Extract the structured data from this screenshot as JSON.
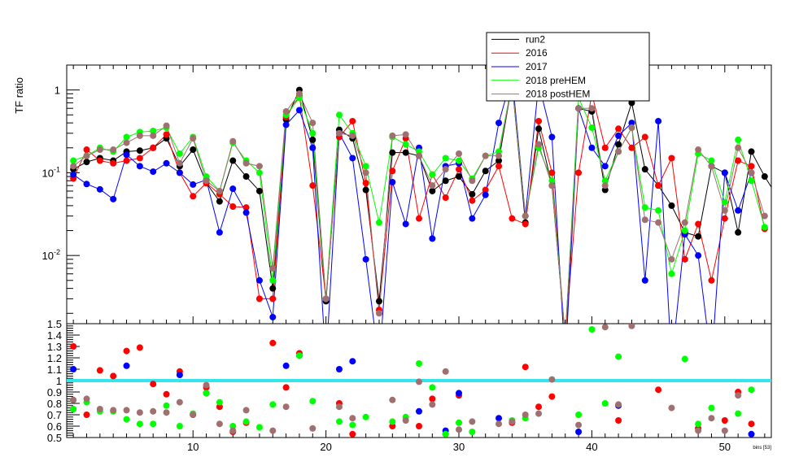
{
  "chart_data": [
    {
      "type": "line",
      "ylabel": "TF ratio",
      "yscale": "log",
      "ylim": [
        0.0015,
        2
      ],
      "xlim": [
        0.5,
        53.5
      ],
      "yticks": [
        {
          "value": 0.01,
          "base": "10",
          "exp": "-2"
        },
        {
          "value": 0.1,
          "base": "10",
          "exp": "-1"
        },
        {
          "value": 1,
          "base": "1",
          "exp": ""
        }
      ],
      "legend": {
        "position": "top-right"
      },
      "series": [
        {
          "name": "run2",
          "color": "#000000",
          "values": [
            0.11,
            0.135,
            0.15,
            0.14,
            0.18,
            0.185,
            0.2,
            0.26,
            0.12,
            0.19,
            0.075,
            0.045,
            0.14,
            0.09,
            0.06,
            0.004,
            0.44,
            1.0,
            0.25,
            0.0028,
            0.33,
            0.26,
            0.062,
            0.0028,
            0.175,
            0.175,
            0.16,
            0.06,
            0.08,
            0.09,
            0.055,
            0.105,
            0.14,
            1.2,
            0.025,
            0.34,
            0.07,
            0.001,
            0.6,
            0.55,
            0.062,
            0.22,
            0.7,
            0.11,
            0.07,
            0.04,
            0.019,
            0.017,
            0.12,
            0.1,
            0.019,
            0.18,
            0.09,
            0.05
          ]
        },
        {
          "name": "2016",
          "color": "#ff0000",
          "values": [
            0.085,
            0.19,
            0.14,
            0.13,
            0.14,
            0.15,
            0.2,
            0.29,
            0.1,
            0.052,
            0.075,
            0.055,
            0.039,
            0.038,
            0.003,
            0.003,
            0.47,
            0.85,
            0.07,
            0.003,
            0.27,
            0.42,
            0.075,
            0.0022,
            0.105,
            0.26,
            0.028,
            0.095,
            0.05,
            0.11,
            0.046,
            0.062,
            0.12,
            0.028,
            0.024,
            0.42,
            0.1,
            0.001,
            0.1,
            0.9,
            0.2,
            0.34,
            0.2,
            0.27,
            0.07,
            0.15,
            0.009,
            0.024,
            0.005,
            0.028,
            0.14,
            0.12,
            0.021
          ]
        },
        {
          "name": "2017",
          "color": "#0000ff",
          "values": [
            0.095,
            0.073,
            0.063,
            0.048,
            0.165,
            0.12,
            0.103,
            0.13,
            0.1,
            0.072,
            0.082,
            0.019,
            0.064,
            0.033,
            0.005,
            0.0018,
            0.38,
            0.57,
            0.2,
            0.0005,
            0.3,
            0.15,
            0.009,
            0.0005,
            0.077,
            0.024,
            0.2,
            0.016,
            0.12,
            0.13,
            0.028,
            0.054,
            0.4,
            1.5,
            0.03,
            1.2,
            0.27,
            0.0005,
            0.6,
            0.2,
            0.12,
            0.28,
            0.4,
            0.005,
            0.42,
            0.0005,
            0.018,
            0.01,
            0.0005,
            0.1,
            0.035,
            0.1
          ]
        },
        {
          "name": "2018 preHEM",
          "color": "#00ff00",
          "values": [
            0.14,
            0.16,
            0.2,
            0.18,
            0.27,
            0.31,
            0.32,
            0.35,
            0.17,
            0.27,
            0.09,
            0.06,
            0.23,
            0.14,
            0.1,
            0.005,
            0.5,
            0.8,
            0.3,
            0.003,
            0.5,
            0.3,
            0.12,
            0.025,
            0.27,
            0.22,
            0.18,
            0.095,
            0.15,
            0.14,
            0.085,
            0.16,
            0.18,
            1.2,
            0.03,
            0.2,
            0.08,
            0.001,
            0.8,
            0.35,
            0.08,
            0.18,
            0.35,
            0.038,
            0.035,
            0.006,
            0.02,
            0.17,
            0.14,
            0.044,
            0.25,
            0.08,
            0.022
          ]
        },
        {
          "name": "2018 postHEM",
          "color": "#a07070",
          "values": [
            0.12,
            0.16,
            0.19,
            0.19,
            0.23,
            0.28,
            0.28,
            0.37,
            0.13,
            0.26,
            0.08,
            0.06,
            0.24,
            0.13,
            0.12,
            0.007,
            0.55,
            0.9,
            0.4,
            0.003,
            0.3,
            0.28,
            0.1,
            0.002,
            0.28,
            0.29,
            0.16,
            0.07,
            0.11,
            0.17,
            0.08,
            0.16,
            0.16,
            1.2,
            0.03,
            0.22,
            0.07,
            0.001,
            0.6,
            0.6,
            0.07,
            0.18,
            0.35,
            0.027,
            0.025,
            0.009,
            0.025,
            0.19,
            0.12,
            0.035,
            0.2,
            0.1,
            0.03
          ]
        }
      ]
    },
    {
      "type": "scatter",
      "xlabel": "bins [53]",
      "ylim": [
        0.5,
        1.5
      ],
      "xlim": [
        0.5,
        53.5
      ],
      "yticks": [
        "0.5",
        "0.6",
        "0.7",
        "0.8",
        "0.9",
        "1",
        "1.1",
        "1.2",
        "1.3",
        "1.4",
        "1.5"
      ],
      "xticks": [
        "10",
        "20",
        "30",
        "40",
        "50"
      ],
      "reference_line": {
        "value": 1.0,
        "color": "#33e6ee"
      },
      "series": [
        {
          "name": "2016",
          "color": "#ff0000",
          "values": [
            1.3,
            0.7,
            1.09,
            1.04,
            1.26,
            1.29,
            0.97,
            0.88,
            1.08,
            0.7,
            0.94,
            0.77,
            0.55,
            0.63,
            0.5,
            1.33,
            0.94,
            1.24,
            0.5,
            0.5,
            0.8,
            0.53,
            0.5,
            0.5,
            0.6,
            0.5,
            0.6,
            0.84,
            0.53,
            0.87,
            0.5,
            0.5,
            0.5,
            0.63,
            1.12,
            0.77,
            0.86,
            0.5,
            0.5,
            0.5,
            0.5,
            0.65,
            0.5,
            0.5,
            0.92,
            0.5,
            0.5,
            0.58,
            0.5,
            0.65,
            0.9,
            0.62
          ]
        },
        {
          "name": "2017",
          "color": "#0000ff",
          "values": [
            1.1,
            0.5,
            0.5,
            0.5,
            1.13,
            0.5,
            0.5,
            0.5,
            1.05,
            0.5,
            0.89,
            0.5,
            0.5,
            0.5,
            0.5,
            0.5,
            1.13,
            1.22,
            0.5,
            0.5,
            1.1,
            1.17,
            0.5,
            0.5,
            0.5,
            0.5,
            0.73,
            0.5,
            0.56,
            0.89,
            0.5,
            0.5,
            0.67,
            0.5,
            0.5,
            0.5,
            0.5,
            0.5,
            0.55,
            0.5,
            0.5,
            0.78,
            0.5,
            0.5,
            0.5,
            0.5,
            0.5,
            0.5,
            0.5,
            0.5,
            0.5,
            0.53
          ]
        },
        {
          "name": "2018 preHEM",
          "color": "#00ff00",
          "values": [
            0.75,
            0.81,
            0.73,
            0.73,
            0.66,
            0.62,
            0.62,
            0.78,
            0.6,
            0.71,
            0.89,
            0.81,
            0.6,
            0.64,
            0.59,
            0.79,
            0.5,
            1.22,
            0.82,
            0.5,
            0.64,
            0.61,
            0.68,
            0.5,
            0.64,
            0.68,
            1.15,
            0.94,
            0.53,
            0.63,
            0.55,
            0.5,
            0.5,
            0.65,
            0.67,
            0.5,
            0.5,
            0.5,
            0.7,
            1.45,
            0.8,
            1.21,
            0.5,
            0.5,
            0.5,
            0.5,
            1.19,
            0.62,
            0.76,
            0.5,
            0.71,
            0.92
          ]
        },
        {
          "name": "2018 postHEM",
          "color": "#a07070",
          "values": [
            0.83,
            0.84,
            0.75,
            0.74,
            0.74,
            0.72,
            0.73,
            0.72,
            0.81,
            0.7,
            0.96,
            0.62,
            0.56,
            0.74,
            0.5,
            0.56,
            0.77,
            0.5,
            0.58,
            0.5,
            0.77,
            0.67,
            0.5,
            0.5,
            0.83,
            0.65,
            0.99,
            0.79,
            1.08,
            0.57,
            0.64,
            0.5,
            0.62,
            0.64,
            0.7,
            0.71,
            1.01,
            0.5,
            0.61,
            0.5,
            1.47,
            0.79,
            1.48,
            0.5,
            0.5,
            0.76,
            0.5,
            0.56,
            0.67,
            0.56,
            0.87,
            0.5
          ]
        }
      ]
    }
  ]
}
